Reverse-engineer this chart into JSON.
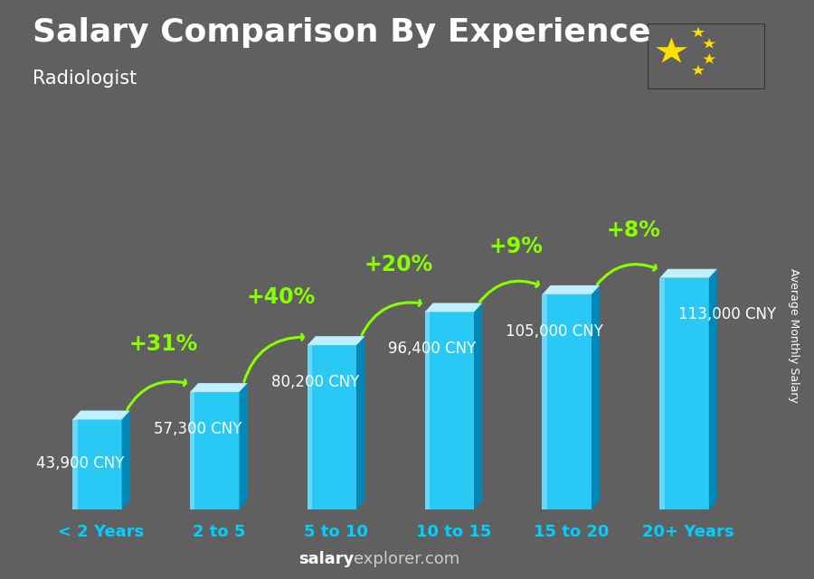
{
  "title": "Salary Comparison By Experience",
  "subtitle": "Radiologist",
  "ylabel": "Average Monthly Salary",
  "categories": [
    "< 2 Years",
    "2 to 5",
    "5 to 10",
    "10 to 15",
    "15 to 20",
    "20+ Years"
  ],
  "values": [
    43900,
    57300,
    80200,
    96400,
    105000,
    113000
  ],
  "labels": [
    "43,900 CNY",
    "57,300 CNY",
    "80,200 CNY",
    "96,400 CNY",
    "105,000 CNY",
    "113,000 CNY"
  ],
  "pct_changes": [
    "+31%",
    "+40%",
    "+20%",
    "+9%",
    "+8%"
  ],
  "bar_face": "#29c8f5",
  "bar_right": "#0088b8",
  "bar_top": "#c0f0ff",
  "bar_highlight": "#80e8ff",
  "background_color": "#606060",
  "title_color": "#ffffff",
  "subtitle_color": "#ffffff",
  "label_color": "#ffffff",
  "pct_color": "#88ff00",
  "category_color": "#00cfff",
  "title_fontsize": 26,
  "subtitle_fontsize": 15,
  "label_fontsize": 12,
  "pct_fontsize": 17,
  "cat_fontsize": 13,
  "watermark_bold": "salary",
  "watermark_normal": "explorer.com",
  "flag_red": "#de2910",
  "flag_yellow": "#ffde00"
}
